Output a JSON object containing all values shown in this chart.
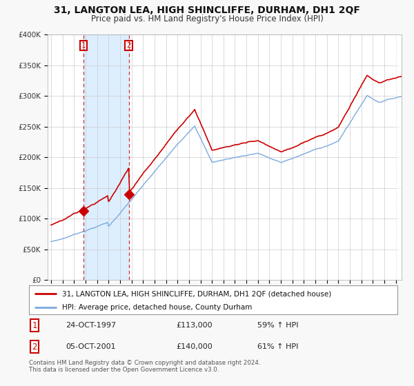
{
  "title": "31, LANGTON LEA, HIGH SHINCLIFFE, DURHAM, DH1 2QF",
  "subtitle": "Price paid vs. HM Land Registry's House Price Index (HPI)",
  "legend_line1": "31, LANGTON LEA, HIGH SHINCLIFFE, DURHAM, DH1 2QF (detached house)",
  "legend_line2": "HPI: Average price, detached house, County Durham",
  "footer": "Contains HM Land Registry data © Crown copyright and database right 2024.\nThis data is licensed under the Open Government Licence v3.0.",
  "transaction1_date": "24-OCT-1997",
  "transaction1_price": "£113,000",
  "transaction1_hpi": "59% ↑ HPI",
  "transaction1_x": 1997.82,
  "transaction1_y": 113000,
  "transaction2_date": "05-OCT-2001",
  "transaction2_price": "£140,000",
  "transaction2_hpi": "61% ↑ HPI",
  "transaction2_x": 2001.76,
  "transaction2_y": 140000,
  "hpi_color": "#7aaadd",
  "property_color": "#cc0000",
  "shade_color": "#ddeeff",
  "background_color": "#f8f8f8",
  "plot_bg_color": "#ffffff",
  "ylim": [
    0,
    400000
  ],
  "xlim_start": 1994.7,
  "xlim_end": 2025.5
}
